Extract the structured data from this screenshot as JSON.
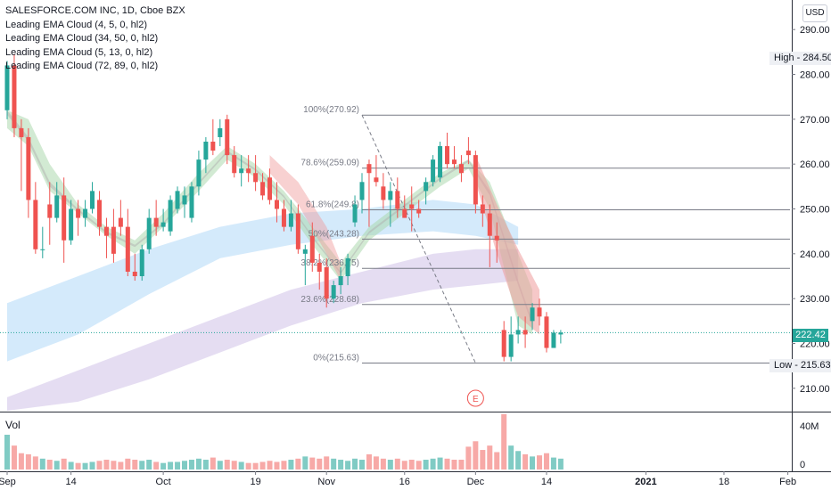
{
  "legend": {
    "title": "SALESFORCE.COM INC, 1D, Cboe BZX",
    "indicators": [
      "Leading EMA Cloud (4, 5, 0, hl2)",
      "Leading EMA Cloud (34, 50, 0, hl2)",
      "Leading EMA Cloud (5, 13, 0, hl2)",
      "Leading EMA Cloud (72, 89, 0, hl2)"
    ]
  },
  "currency": "USD",
  "volume_label": "Vol",
  "high_tag": "High - 284.50",
  "low_tag": "Low - 215.63",
  "last_price": "222.42",
  "earnings_marker": "E",
  "colors": {
    "up": "#26a69a",
    "down": "#ef5350",
    "vol_up": "#80cbc4",
    "vol_down": "#f7a9a7",
    "last": "#26a69a"
  },
  "chart_data": {
    "type": "candlestick",
    "ylim": [
      205,
      295
    ],
    "y_ticks": [
      210,
      220,
      230,
      240,
      250,
      260,
      270,
      280,
      290
    ],
    "volume_ticks": [
      "40M",
      "0"
    ],
    "volume_ylim": [
      0,
      50
    ],
    "x_ticks": [
      {
        "label": "Sep",
        "i": 0
      },
      {
        "label": "14",
        "i": 9
      },
      {
        "label": "Oct",
        "i": 22
      },
      {
        "label": "19",
        "i": 35
      },
      {
        "label": "Nov",
        "i": 45
      },
      {
        "label": "16",
        "i": 56
      },
      {
        "label": "Dec",
        "i": 66
      },
      {
        "label": "14",
        "i": 76
      },
      {
        "label": "2021",
        "i": 90
      },
      {
        "label": "18",
        "i": 101
      },
      {
        "label": "Feb",
        "i": 110
      }
    ],
    "candles": [
      {
        "o": 272,
        "h": 283,
        "l": 270,
        "c": 282,
        "v": 32
      },
      {
        "o": 282,
        "h": 284.5,
        "l": 266,
        "c": 268,
        "v": 22
      },
      {
        "o": 268,
        "h": 270,
        "l": 254,
        "c": 266,
        "v": 15
      },
      {
        "o": 266,
        "h": 268,
        "l": 248,
        "c": 252,
        "v": 14
      },
      {
        "o": 252,
        "h": 256,
        "l": 240,
        "c": 241,
        "v": 12
      },
      {
        "o": 241,
        "h": 246,
        "l": 239,
        "c": 241,
        "v": 10
      },
      {
        "o": 251,
        "h": 256,
        "l": 242,
        "c": 248,
        "v": 9
      },
      {
        "o": 248,
        "h": 256,
        "l": 247,
        "c": 253,
        "v": 8
      },
      {
        "o": 253,
        "h": 257,
        "l": 238,
        "c": 243,
        "v": 10
      },
      {
        "o": 243,
        "h": 252,
        "l": 242,
        "c": 250,
        "v": 7
      },
      {
        "o": 250,
        "h": 252,
        "l": 244,
        "c": 248,
        "v": 6
      },
      {
        "o": 248,
        "h": 252,
        "l": 246,
        "c": 250,
        "v": 6
      },
      {
        "o": 250,
        "h": 256,
        "l": 249,
        "c": 254,
        "v": 7
      },
      {
        "o": 252,
        "h": 254,
        "l": 244,
        "c": 246,
        "v": 8
      },
      {
        "o": 246,
        "h": 248,
        "l": 239,
        "c": 244,
        "v": 9
      },
      {
        "o": 246,
        "h": 250,
        "l": 238,
        "c": 240,
        "v": 8
      },
      {
        "o": 248,
        "h": 252,
        "l": 244,
        "c": 246,
        "v": 7
      },
      {
        "o": 246,
        "h": 250,
        "l": 235,
        "c": 236,
        "v": 10
      },
      {
        "o": 236,
        "h": 240,
        "l": 234,
        "c": 235,
        "v": 9
      },
      {
        "o": 235,
        "h": 242,
        "l": 234,
        "c": 241,
        "v": 8
      },
      {
        "o": 241,
        "h": 250,
        "l": 240,
        "c": 248,
        "v": 9
      },
      {
        "o": 248,
        "h": 252,
        "l": 244,
        "c": 246,
        "v": 7
      },
      {
        "o": 246,
        "h": 250,
        "l": 245,
        "c": 247,
        "v": 6
      },
      {
        "o": 245,
        "h": 253,
        "l": 244,
        "c": 252,
        "v": 7
      },
      {
        "o": 250,
        "h": 255,
        "l": 249,
        "c": 254,
        "v": 7
      },
      {
        "o": 251,
        "h": 255,
        "l": 248,
        "c": 253,
        "v": 8
      },
      {
        "o": 248,
        "h": 256,
        "l": 247,
        "c": 255,
        "v": 9
      },
      {
        "o": 255,
        "h": 263,
        "l": 253,
        "c": 261,
        "v": 10
      },
      {
        "o": 261,
        "h": 266,
        "l": 258,
        "c": 265,
        "v": 9
      },
      {
        "o": 265,
        "h": 270,
        "l": 262,
        "c": 263,
        "v": 11
      },
      {
        "o": 266,
        "h": 270,
        "l": 264,
        "c": 268,
        "v": 8
      },
      {
        "o": 270,
        "h": 271,
        "l": 260,
        "c": 262,
        "v": 9
      },
      {
        "o": 262,
        "h": 264,
        "l": 257,
        "c": 258,
        "v": 8
      },
      {
        "o": 258,
        "h": 262,
        "l": 255,
        "c": 259,
        "v": 7
      },
      {
        "o": 259,
        "h": 262,
        "l": 256,
        "c": 258,
        "v": 6
      },
      {
        "o": 258,
        "h": 262,
        "l": 254,
        "c": 256,
        "v": 6
      },
      {
        "o": 256,
        "h": 258,
        "l": 252,
        "c": 253,
        "v": 7
      },
      {
        "o": 257,
        "h": 259,
        "l": 251,
        "c": 252,
        "v": 8
      },
      {
        "o": 252,
        "h": 256,
        "l": 247,
        "c": 250,
        "v": 7
      },
      {
        "o": 250,
        "h": 252,
        "l": 245,
        "c": 246,
        "v": 8
      },
      {
        "o": 246,
        "h": 252,
        "l": 245,
        "c": 249,
        "v": 9
      },
      {
        "o": 249,
        "h": 251,
        "l": 240,
        "c": 241,
        "v": 10
      },
      {
        "o": 240,
        "h": 242,
        "l": 233,
        "c": 241,
        "v": 12
      },
      {
        "o": 244,
        "h": 247,
        "l": 236,
        "c": 238,
        "v": 11
      },
      {
        "o": 238,
        "h": 240,
        "l": 232,
        "c": 236,
        "v": 10
      },
      {
        "o": 237,
        "h": 239,
        "l": 228,
        "c": 230,
        "v": 12
      },
      {
        "o": 230,
        "h": 234,
        "l": 229,
        "c": 233,
        "v": 10
      },
      {
        "o": 233,
        "h": 237,
        "l": 231,
        "c": 235,
        "v": 9
      },
      {
        "o": 235,
        "h": 240,
        "l": 233,
        "c": 239,
        "v": 8
      },
      {
        "o": 247,
        "h": 253,
        "l": 246,
        "c": 251,
        "v": 10
      },
      {
        "o": 252,
        "h": 258,
        "l": 249,
        "c": 256,
        "v": 9
      },
      {
        "o": 260,
        "h": 261,
        "l": 246,
        "c": 258,
        "v": 14
      },
      {
        "o": 257,
        "h": 262,
        "l": 255,
        "c": 256,
        "v": 12
      },
      {
        "o": 255,
        "h": 258,
        "l": 250,
        "c": 252,
        "v": 10
      },
      {
        "o": 252,
        "h": 256,
        "l": 246,
        "c": 254,
        "v": 9
      },
      {
        "o": 254,
        "h": 257,
        "l": 248,
        "c": 250,
        "v": 10
      },
      {
        "o": 250,
        "h": 253,
        "l": 248,
        "c": 248,
        "v": 8
      },
      {
        "o": 251,
        "h": 255,
        "l": 245,
        "c": 250,
        "v": 9
      },
      {
        "o": 250,
        "h": 252,
        "l": 248,
        "c": 249,
        "v": 8
      },
      {
        "o": 254,
        "h": 257,
        "l": 251,
        "c": 256,
        "v": 9
      },
      {
        "o": 256,
        "h": 262,
        "l": 255,
        "c": 261,
        "v": 10
      },
      {
        "o": 257,
        "h": 265,
        "l": 256,
        "c": 264,
        "v": 11
      },
      {
        "o": 264,
        "h": 267,
        "l": 259,
        "c": 260,
        "v": 10
      },
      {
        "o": 261,
        "h": 264,
        "l": 259,
        "c": 260,
        "v": 9
      },
      {
        "o": 260,
        "h": 262,
        "l": 256,
        "c": 258,
        "v": 9
      },
      {
        "o": 263,
        "h": 266,
        "l": 260,
        "c": 262,
        "v": 21
      },
      {
        "o": 262,
        "h": 263,
        "l": 249,
        "c": 251,
        "v": 26
      },
      {
        "o": 251,
        "h": 253,
        "l": 246,
        "c": 249,
        "v": 18
      },
      {
        "o": 249,
        "h": 251,
        "l": 237,
        "c": 244,
        "v": 22
      },
      {
        "o": 244,
        "h": 247,
        "l": 238,
        "c": 243,
        "v": 16
      },
      {
        "o": 223,
        "h": 225,
        "l": 216,
        "c": 217,
        "v": 51
      },
      {
        "o": 217,
        "h": 226,
        "l": 216,
        "c": 222,
        "v": 22
      },
      {
        "o": 222,
        "h": 226,
        "l": 220,
        "c": 223,
        "v": 17
      },
      {
        "o": 223,
        "h": 226,
        "l": 219,
        "c": 222,
        "v": 14
      },
      {
        "o": 225,
        "h": 229,
        "l": 223,
        "c": 228,
        "v": 12
      },
      {
        "o": 228,
        "h": 230,
        "l": 224,
        "c": 226,
        "v": 13
      },
      {
        "o": 226,
        "h": 227,
        "l": 218,
        "c": 219,
        "v": 15
      },
      {
        "o": 219,
        "h": 223,
        "l": 219,
        "c": 222.4,
        "v": 11
      },
      {
        "o": 222,
        "h": 223,
        "l": 220,
        "c": 222.42,
        "v": 10
      }
    ],
    "fib_levels": [
      {
        "label": "100%(270.92)",
        "value": 270.92
      },
      {
        "label": "78.6%(259.09)",
        "value": 259.09
      },
      {
        "label": "61.8%(249.8)",
        "value": 249.8
      },
      {
        "label": "50%(243.28)",
        "value": 243.28
      },
      {
        "label": "38.2%(236.75)",
        "value": 236.75
      },
      {
        "label": "23.6%(228.68)",
        "value": 228.68
      },
      {
        "label": "0%(215.63)",
        "value": 215.63
      }
    ],
    "fib_start_index": 50,
    "high": 284.5,
    "low": 215.63,
    "last": 222.42,
    "earnings_index": 66,
    "clouds": [
      {
        "name": "Leading EMA Cloud (72, 89, 0, hl2)",
        "color": "#c5b4e3",
        "opacity": 0.45,
        "upper": [
          [
            0,
            208
          ],
          [
            10,
            214
          ],
          [
            20,
            220
          ],
          [
            30,
            226
          ],
          [
            40,
            232
          ],
          [
            50,
            236
          ],
          [
            60,
            240
          ],
          [
            66,
            241
          ],
          [
            72,
            241
          ]
        ],
        "lower": [
          [
            0,
            205
          ],
          [
            10,
            207
          ],
          [
            20,
            212
          ],
          [
            30,
            218
          ],
          [
            40,
            224
          ],
          [
            50,
            229
          ],
          [
            60,
            232
          ],
          [
            66,
            233
          ],
          [
            72,
            234
          ]
        ]
      },
      {
        "name": "Leading EMA Cloud (34, 50, 0, hl2)",
        "color": "#9fd0f7",
        "opacity": 0.45,
        "upper": [
          [
            0,
            229
          ],
          [
            10,
            235
          ],
          [
            20,
            241
          ],
          [
            30,
            246
          ],
          [
            40,
            249
          ],
          [
            50,
            250
          ],
          [
            60,
            252
          ],
          [
            66,
            251
          ],
          [
            72,
            246
          ]
        ],
        "lower": [
          [
            0,
            216
          ],
          [
            10,
            222
          ],
          [
            20,
            231
          ],
          [
            30,
            239
          ],
          [
            40,
            242
          ],
          [
            50,
            244
          ],
          [
            60,
            245
          ],
          [
            66,
            244
          ],
          [
            72,
            242
          ]
        ]
      },
      {
        "name": "Leading EMA Cloud (5, 13, 0, hl2)",
        "color": "#a5d6a7",
        "opacity": 0.5,
        "upper": [
          [
            0,
            272
          ],
          [
            3,
            270
          ],
          [
            6,
            260
          ],
          [
            10,
            251
          ],
          [
            14,
            246
          ],
          [
            18,
            243
          ],
          [
            22,
            249
          ],
          [
            27,
            258
          ],
          [
            31,
            264
          ],
          [
            35,
            260
          ],
          [
            39,
            254
          ],
          [
            43,
            246
          ],
          [
            47,
            238
          ],
          [
            51,
            246
          ],
          [
            56,
            252
          ],
          [
            61,
            258
          ],
          [
            65,
            261
          ],
          [
            68,
            256
          ],
          [
            72,
            240
          ],
          [
            74,
            232
          ]
        ],
        "lower": [
          [
            0,
            268
          ],
          [
            3,
            264
          ],
          [
            6,
            254
          ],
          [
            10,
            249
          ],
          [
            14,
            244
          ],
          [
            18,
            240
          ],
          [
            22,
            246
          ],
          [
            27,
            254
          ],
          [
            31,
            261
          ],
          [
            35,
            257
          ],
          [
            39,
            251
          ],
          [
            43,
            242
          ],
          [
            47,
            234
          ],
          [
            51,
            243
          ],
          [
            56,
            249
          ],
          [
            61,
            255
          ],
          [
            65,
            259
          ],
          [
            68,
            250
          ],
          [
            72,
            224
          ],
          [
            74,
            222
          ]
        ]
      },
      {
        "name": "Leading EMA Cloud (4, 5, 0, hl2)",
        "color": "#b0b0b0",
        "opacity": 0.5,
        "upper": [
          [
            0,
            272
          ],
          [
            3,
            266
          ],
          [
            6,
            256
          ],
          [
            10,
            250
          ],
          [
            14,
            245
          ],
          [
            18,
            242
          ],
          [
            22,
            247
          ],
          [
            27,
            256
          ],
          [
            31,
            263
          ],
          [
            35,
            259
          ],
          [
            39,
            253
          ],
          [
            43,
            244
          ],
          [
            47,
            236
          ],
          [
            51,
            245
          ],
          [
            56,
            251
          ],
          [
            61,
            257
          ],
          [
            65,
            261
          ],
          [
            68,
            254
          ],
          [
            72,
            234
          ],
          [
            74,
            225
          ]
        ],
        "lower": [
          [
            0,
            271
          ],
          [
            3,
            265
          ],
          [
            6,
            255
          ],
          [
            10,
            249.5
          ],
          [
            14,
            244.5
          ],
          [
            18,
            241.5
          ],
          [
            22,
            246.5
          ],
          [
            27,
            255.5
          ],
          [
            31,
            262.5
          ],
          [
            35,
            258.5
          ],
          [
            39,
            252.5
          ],
          [
            43,
            243.5
          ],
          [
            47,
            235.5
          ],
          [
            51,
            244.5
          ],
          [
            56,
            250.5
          ],
          [
            61,
            256.5
          ],
          [
            65,
            260.5
          ],
          [
            68,
            253
          ],
          [
            72,
            233
          ],
          [
            74,
            224
          ]
        ]
      }
    ]
  }
}
